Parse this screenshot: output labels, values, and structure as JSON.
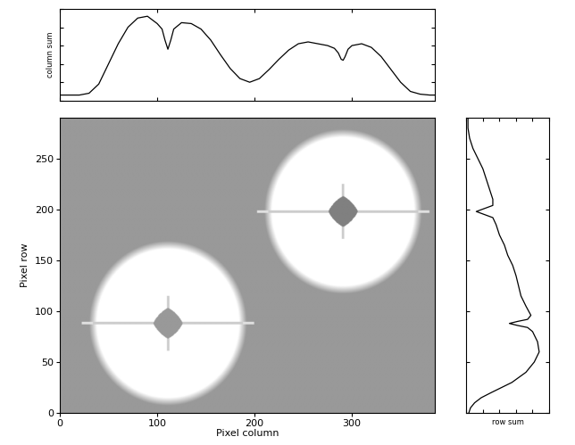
{
  "chart_data": [
    {
      "type": "image",
      "xlabel": "Pixel column",
      "ylabel": "Pixel row",
      "xlim": [
        0,
        385
      ],
      "ylim": [
        0,
        290
      ],
      "xticks": [
        0,
        100,
        200,
        300
      ],
      "yticks": [
        0,
        50,
        100,
        150,
        200,
        250
      ],
      "sources": [
        {
          "x": 111,
          "y": 88,
          "outer_radius": 77,
          "inner_radius": 15
        },
        {
          "x": 291,
          "y": 198,
          "outer_radius": 77,
          "inner_radius": 15
        }
      ]
    },
    {
      "type": "line",
      "ylabel": "column sum",
      "color": "#000000",
      "tick_labels": false,
      "xlim": [
        0,
        385
      ],
      "ylim": [
        0,
        100
      ],
      "xticks": [
        0,
        100,
        200,
        300
      ],
      "yticks": [
        0,
        20,
        40,
        60,
        80,
        100
      ],
      "x": [
        0,
        10,
        20,
        30,
        40,
        50,
        60,
        70,
        80,
        90,
        100,
        105,
        108,
        111,
        114,
        117,
        125,
        135,
        145,
        155,
        165,
        175,
        185,
        195,
        205,
        215,
        225,
        235,
        245,
        255,
        265,
        275,
        282,
        286,
        289,
        291,
        293,
        296,
        300,
        310,
        320,
        330,
        340,
        350,
        360,
        370,
        380,
        385
      ],
      "values": [
        6,
        6,
        6,
        8,
        18,
        40,
        62,
        80,
        90,
        92,
        84,
        78,
        66,
        56,
        66,
        78,
        85,
        84,
        78,
        66,
        50,
        35,
        24,
        20,
        24,
        34,
        45,
        55,
        62,
        64,
        62,
        60,
        57,
        52,
        45,
        44,
        48,
        56,
        60,
        62,
        58,
        48,
        34,
        20,
        10,
        7,
        6,
        6
      ]
    },
    {
      "type": "line",
      "orientation": "horizontal",
      "xlabel": "row sum",
      "color": "#000000",
      "tick_labels": false,
      "xlim": [
        0,
        100
      ],
      "ylim": [
        0,
        290
      ],
      "xticks": [
        0,
        20,
        40,
        60,
        80,
        100
      ],
      "yticks": [
        0,
        50,
        100,
        150,
        200,
        250
      ],
      "y": [
        0,
        5,
        10,
        15,
        20,
        30,
        40,
        50,
        60,
        70,
        80,
        84,
        86,
        88,
        90,
        92,
        96,
        105,
        115,
        125,
        135,
        145,
        155,
        165,
        175,
        185,
        192,
        195,
        198,
        201,
        204,
        210,
        220,
        230,
        240,
        250,
        260,
        270,
        280,
        290
      ],
      "values": [
        3,
        5,
        10,
        18,
        30,
        55,
        72,
        82,
        88,
        86,
        80,
        74,
        62,
        52,
        62,
        74,
        78,
        72,
        66,
        63,
        60,
        56,
        50,
        46,
        40,
        36,
        32,
        22,
        12,
        22,
        32,
        32,
        28,
        24,
        20,
        14,
        8,
        4,
        2,
        2
      ]
    }
  ]
}
